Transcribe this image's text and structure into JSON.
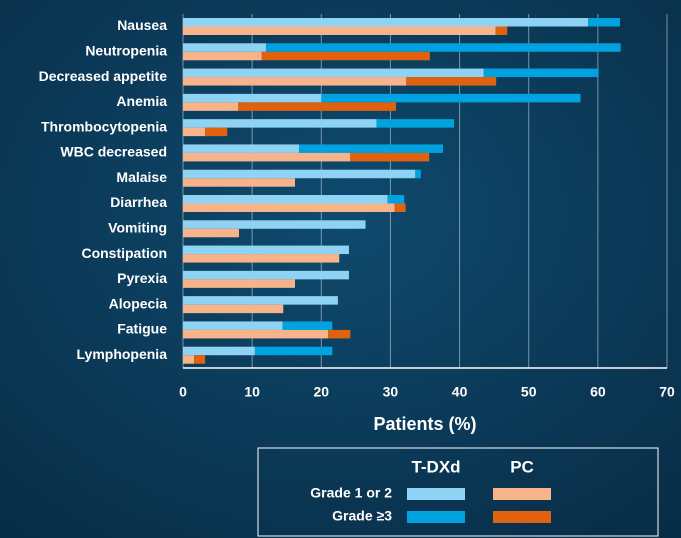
{
  "chart_data": {
    "type": "grouped-stacked-bar",
    "orientation": "horizontal",
    "x_label": "Patients (%)",
    "categories": [
      "Nausea",
      "Neutropenia",
      "Decreased appetite",
      "Anemia",
      "Thrombocytopenia",
      "WBC decreased",
      "Malaise",
      "Diarrhea",
      "Vomiting",
      "Constipation",
      "Pyrexia",
      "Alopecia",
      "Fatigue",
      "Lymphopenia"
    ],
    "series": [
      {
        "name": "T-DXd",
        "segments": [
          {
            "name": "Grade 1 or 2",
            "color": "#8fd3f4",
            "values": [
              58.6,
              12,
              43.5,
              20,
              28,
              16.8,
              33.6,
              29.6,
              26.4,
              24,
              24,
              22.4,
              14.4,
              10.4
            ]
          },
          {
            "name": "Grade ≥3",
            "color": "#00a3e0",
            "values": [
              4.6,
              51.3,
              16.6,
              37.5,
              11.2,
              20.8,
              0.8,
              2.4,
              0,
              0,
              0,
              0,
              7.2,
              11.2
            ]
          }
        ]
      },
      {
        "name": "PC",
        "segments": [
          {
            "name": "Grade 1 or 2",
            "color": "#f7b48a",
            "values": [
              45.2,
              11.4,
              32.3,
              8,
              3.2,
              24.2,
              16.2,
              30.6,
              8.1,
              22.6,
              16.2,
              14.5,
              21,
              1.6
            ]
          },
          {
            "name": "Grade ≥3",
            "color": "#e0620f",
            "values": [
              1.7,
              24.3,
              13,
              22.8,
              3.2,
              11.4,
              0,
              1.6,
              0,
              0,
              0,
              0,
              3.2,
              1.6
            ]
          }
        ]
      }
    ],
    "xlim": [
      0,
      70
    ],
    "xticks": [
      0,
      10,
      20,
      30,
      40,
      50,
      60,
      70
    ],
    "grid": true
  }
}
